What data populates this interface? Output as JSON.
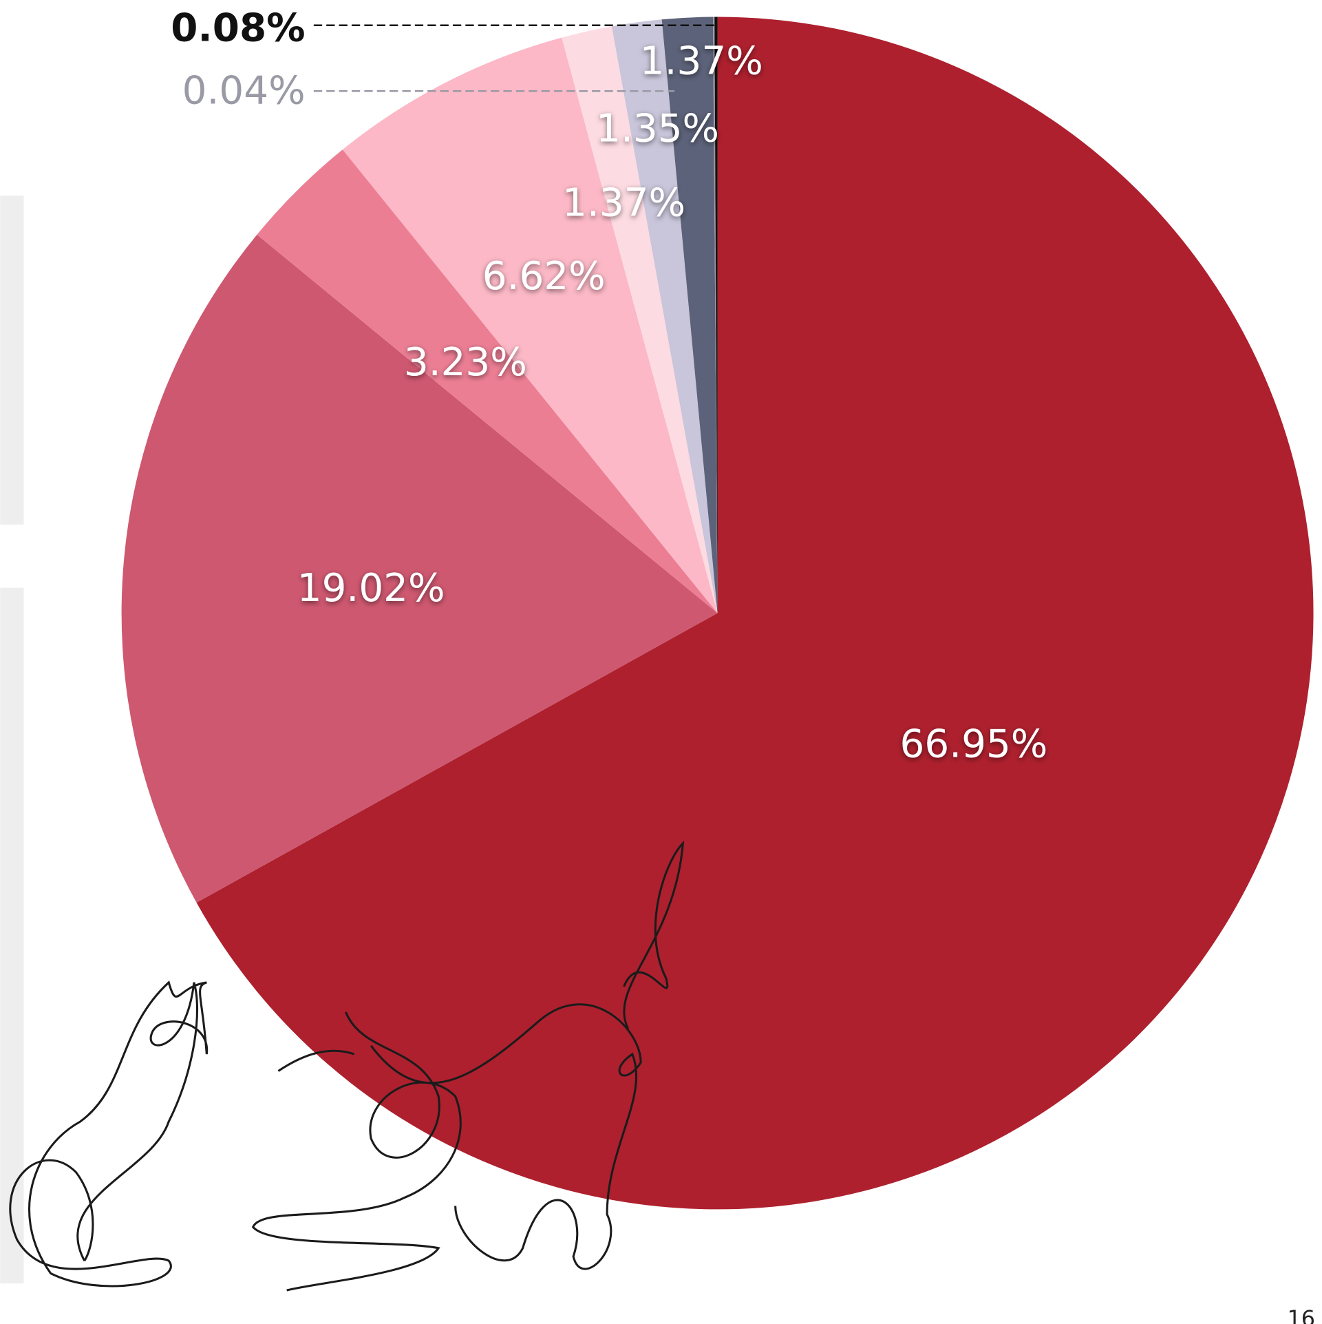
{
  "chart_data": {
    "type": "pie",
    "values": [
      66.95,
      19.02,
      3.23,
      6.62,
      1.37,
      1.35,
      1.37,
      0.04,
      0.08
    ],
    "value_labels": [
      "66.95%",
      "19.02%",
      "3.23%",
      "6.62%",
      "1.37%",
      "1.35%",
      "1.37%",
      "0.04%",
      "0.08%"
    ],
    "colors": [
      "#ae202e",
      "#ce5870",
      "#ec7e94",
      "#fcb8c6",
      "#fddbe2",
      "#c9c5da",
      "#5c6279",
      "#9a9aa6",
      "#111111"
    ]
  },
  "page_number": "16"
}
